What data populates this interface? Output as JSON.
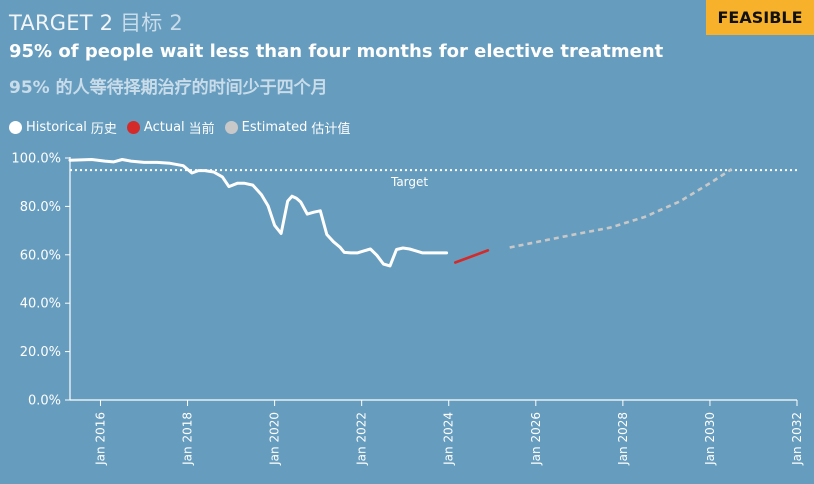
{
  "header": {
    "target_en": "TARGET 2",
    "target_cn": "目标 2",
    "badge": "FEASIBLE",
    "title_en": "95% of people wait less than four months for elective treatment",
    "title_cn": "95% 的人等待择期治疗的时间少于四个月"
  },
  "legend": [
    {
      "label_en": "Historical",
      "label_cn": "历史",
      "color": "#ffffff"
    },
    {
      "label_en": "Actual",
      "label_cn": "当前",
      "color": "#d42a2a"
    },
    {
      "label_en": "Estimated",
      "label_cn": "估计值",
      "color": "#c8c8c8"
    }
  ],
  "colors": {
    "background": "#669cbe",
    "badge": "#f7b12a",
    "historical": "#ffffff",
    "actual": "#d42a2a",
    "estimated": "#c8c8c8"
  },
  "chart_data": {
    "type": "line",
    "title": "95% of people wait less than four months for elective treatment",
    "xlabel": "",
    "ylabel": "",
    "xlim": [
      2015.3,
      2032.0
    ],
    "ylim": [
      0,
      100
    ],
    "y_ticks": [
      0,
      20,
      40,
      60,
      80,
      100
    ],
    "y_tick_labels": [
      "0.0%",
      "20.0%",
      "40.0%",
      "60.0%",
      "80.0%",
      "100.0%"
    ],
    "x_ticks": [
      2016,
      2018,
      2020,
      2022,
      2024,
      2026,
      2028,
      2030,
      2032
    ],
    "x_tick_labels": [
      "Jan 2016",
      "Jan 2018",
      "Jan 2020",
      "Jan 2022",
      "Jan 2024",
      "Jan 2026",
      "Jan 2028",
      "Jan 2030",
      "Jan 2032"
    ],
    "target": {
      "value": 95,
      "label": "Target"
    },
    "grid": false,
    "series": [
      {
        "name": "Historical 历史",
        "style": "solid",
        "x": [
          2015.3,
          2015.8,
          2016.1,
          2016.3,
          2016.5,
          2016.7,
          2017.0,
          2017.3,
          2017.6,
          2017.9,
          2018.1,
          2018.25,
          2018.4,
          2018.6,
          2018.8,
          2018.95,
          2019.15,
          2019.3,
          2019.5,
          2019.7,
          2019.85,
          2020.0,
          2020.15,
          2020.3,
          2020.4,
          2020.5,
          2020.6,
          2020.75,
          2020.9,
          2021.05,
          2021.2,
          2021.35,
          2021.5,
          2021.6,
          2021.75,
          2021.9,
          2022.05,
          2022.2,
          2022.35,
          2022.5,
          2022.65,
          2022.8,
          2022.95,
          2023.1,
          2023.25,
          2023.4,
          2023.55,
          2023.7,
          2023.85,
          2023.95
        ],
        "y": [
          99.1,
          99.4,
          98.7,
          98.4,
          99.4,
          98.7,
          98.2,
          98.2,
          97.8,
          96.8,
          93.8,
          94.8,
          94.8,
          94.2,
          92.2,
          88.2,
          89.6,
          89.6,
          88.8,
          84.8,
          80.2,
          72.2,
          68.8,
          82.2,
          84.2,
          83.4,
          81.8,
          76.8,
          77.6,
          78.2,
          68.4,
          65.4,
          63.2,
          61.0,
          60.8,
          60.8,
          61.6,
          62.4,
          59.8,
          56.2,
          55.4,
          62.2,
          62.8,
          62.4,
          61.6,
          60.8,
          60.8,
          60.8,
          60.8,
          60.8
        ]
      },
      {
        "name": "Actual 当前",
        "style": "solid",
        "x": [
          2024.15,
          2024.9
        ],
        "y": [
          56.8,
          61.8
        ]
      },
      {
        "name": "Estimated 估计值",
        "style": "dashed",
        "x": [
          2025.4,
          2026.0,
          2027.0,
          2027.7,
          2028.5,
          2029.3,
          2030.0,
          2030.5
        ],
        "y": [
          63.0,
          65.2,
          68.8,
          71.2,
          75.6,
          82.0,
          89.6,
          95.4
        ]
      }
    ]
  }
}
